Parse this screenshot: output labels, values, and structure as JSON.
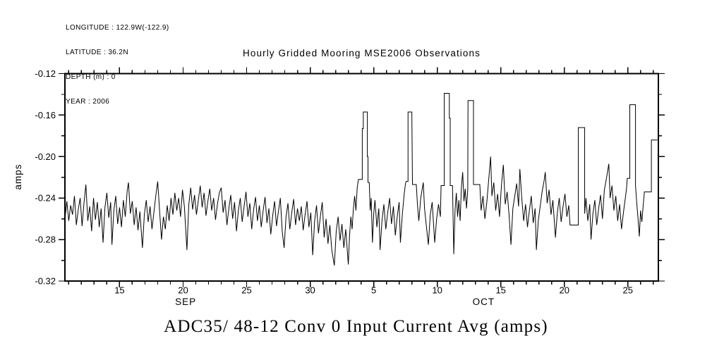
{
  "header_info": {
    "lines": [
      "LONGITUDE : 122.9W(-122.9)",
      "LATITUDE : 36.2N",
      "DEPTH (m) : 0",
      "YEAR : 2006"
    ]
  },
  "chart_data": {
    "type": "line",
    "title": "Hourly Gridded Mooring MSE2006 Observations",
    "caption": "ADC35/ 48-12 Conv 0 Input Current Avg (amps)",
    "ylabel": "amps",
    "series_name": "ADC35/ 48-12 Conv 0 Input Current Avg",
    "line_color": "#000000",
    "background": "#ffffff",
    "grid": false,
    "legend": "none",
    "x_axis_note": "x in day units: Sep 11-30 = 11-30, Oct d = 30+d",
    "xlim": [
      10.7,
      57.4
    ],
    "ylim": [
      -0.32,
      -0.12
    ],
    "x_major_ticks": [
      {
        "x": 15,
        "label": "15"
      },
      {
        "x": 20,
        "label": "20"
      },
      {
        "x": 25,
        "label": "25"
      },
      {
        "x": 30,
        "label": "30"
      },
      {
        "x": 35,
        "label": "5"
      },
      {
        "x": 40,
        "label": "10"
      },
      {
        "x": 45,
        "label": "15"
      },
      {
        "x": 50,
        "label": "20"
      },
      {
        "x": 55,
        "label": "25"
      }
    ],
    "x_minor_range": [
      11,
      57,
      1
    ],
    "y_major_ticks": [
      {
        "y": -0.12,
        "label": "-0.12"
      },
      {
        "y": -0.16,
        "label": "-0.16"
      },
      {
        "y": -0.2,
        "label": "-0.20"
      },
      {
        "y": -0.24,
        "label": "-0.24"
      },
      {
        "y": -0.28,
        "label": "-0.28"
      },
      {
        "y": -0.32,
        "label": "-0.32"
      }
    ],
    "y_minor_ticks": [
      -0.14,
      -0.18,
      -0.22,
      -0.26,
      -0.3
    ],
    "month_labels": [
      {
        "x": 20.2,
        "label": "SEP"
      },
      {
        "x": 43.65,
        "label": "OCT"
      }
    ],
    "points": [
      [
        10.72,
        -0.258
      ],
      [
        10.85,
        -0.243
      ],
      [
        11.0,
        -0.262
      ],
      [
        11.15,
        -0.247
      ],
      [
        11.3,
        -0.256
      ],
      [
        11.45,
        -0.238
      ],
      [
        11.6,
        -0.266
      ],
      [
        11.75,
        -0.251
      ],
      [
        11.9,
        -0.24
      ],
      [
        12.05,
        -0.267
      ],
      [
        12.2,
        -0.245
      ],
      [
        12.35,
        -0.227
      ],
      [
        12.5,
        -0.262
      ],
      [
        12.65,
        -0.248
      ],
      [
        12.8,
        -0.272
      ],
      [
        12.95,
        -0.24
      ],
      [
        13.1,
        -0.261
      ],
      [
        13.25,
        -0.244
      ],
      [
        13.4,
        -0.268
      ],
      [
        13.55,
        -0.25
      ],
      [
        13.7,
        -0.283
      ],
      [
        13.85,
        -0.249
      ],
      [
        14.0,
        -0.235
      ],
      [
        14.15,
        -0.259
      ],
      [
        14.3,
        -0.244
      ],
      [
        14.4,
        -0.285
      ],
      [
        14.55,
        -0.252
      ],
      [
        14.7,
        -0.238
      ],
      [
        14.85,
        -0.265
      ],
      [
        15.0,
        -0.249
      ],
      [
        15.15,
        -0.268
      ],
      [
        15.3,
        -0.242
      ],
      [
        15.45,
        -0.258
      ],
      [
        15.6,
        -0.233
      ],
      [
        15.7,
        -0.225
      ],
      [
        15.85,
        -0.255
      ],
      [
        16.0,
        -0.243
      ],
      [
        16.15,
        -0.266
      ],
      [
        16.3,
        -0.249
      ],
      [
        16.45,
        -0.271
      ],
      [
        16.6,
        -0.253
      ],
      [
        16.8,
        -0.288
      ],
      [
        16.95,
        -0.256
      ],
      [
        17.1,
        -0.242
      ],
      [
        17.25,
        -0.263
      ],
      [
        17.4,
        -0.248
      ],
      [
        17.55,
        -0.27
      ],
      [
        17.7,
        -0.254
      ],
      [
        17.85,
        -0.238
      ],
      [
        18.0,
        -0.224
      ],
      [
        18.15,
        -0.252
      ],
      [
        18.3,
        -0.28
      ],
      [
        18.45,
        -0.258
      ],
      [
        18.6,
        -0.27
      ],
      [
        18.75,
        -0.247
      ],
      [
        18.9,
        -0.262
      ],
      [
        19.05,
        -0.24
      ],
      [
        19.2,
        -0.256
      ],
      [
        19.35,
        -0.235
      ],
      [
        19.5,
        -0.252
      ],
      [
        19.65,
        -0.24
      ],
      [
        19.8,
        -0.258
      ],
      [
        19.95,
        -0.232
      ],
      [
        20.1,
        -0.248
      ],
      [
        20.3,
        -0.29
      ],
      [
        20.45,
        -0.246
      ],
      [
        20.6,
        -0.23
      ],
      [
        20.75,
        -0.251
      ],
      [
        20.9,
        -0.237
      ],
      [
        21.05,
        -0.256
      ],
      [
        21.2,
        -0.242
      ],
      [
        21.35,
        -0.228
      ],
      [
        21.5,
        -0.249
      ],
      [
        21.65,
        -0.235
      ],
      [
        21.8,
        -0.257
      ],
      [
        21.95,
        -0.243
      ],
      [
        22.1,
        -0.231
      ],
      [
        22.25,
        -0.252
      ],
      [
        22.4,
        -0.24
      ],
      [
        22.55,
        -0.261
      ],
      [
        22.7,
        -0.246
      ],
      [
        22.85,
        -0.235
      ],
      [
        23.0,
        -0.23
      ],
      [
        23.15,
        -0.254
      ],
      [
        23.3,
        -0.242
      ],
      [
        23.45,
        -0.266
      ],
      [
        23.6,
        -0.25
      ],
      [
        23.75,
        -0.237
      ],
      [
        23.9,
        -0.26
      ],
      [
        24.05,
        -0.244
      ],
      [
        24.2,
        -0.272
      ],
      [
        24.35,
        -0.252
      ],
      [
        24.5,
        -0.24
      ],
      [
        24.65,
        -0.263
      ],
      [
        24.8,
        -0.248
      ],
      [
        24.95,
        -0.234
      ],
      [
        25.1,
        -0.258
      ],
      [
        25.25,
        -0.245
      ],
      [
        25.4,
        -0.27
      ],
      [
        25.55,
        -0.251
      ],
      [
        25.7,
        -0.239
      ],
      [
        25.85,
        -0.262
      ],
      [
        26.0,
        -0.247
      ],
      [
        26.15,
        -0.268
      ],
      [
        26.3,
        -0.252
      ],
      [
        26.45,
        -0.239
      ],
      [
        26.6,
        -0.264
      ],
      [
        26.75,
        -0.25
      ],
      [
        26.9,
        -0.275
      ],
      [
        27.05,
        -0.257
      ],
      [
        27.2,
        -0.243
      ],
      [
        27.35,
        -0.267
      ],
      [
        27.5,
        -0.253
      ],
      [
        27.65,
        -0.24
      ],
      [
        27.8,
        -0.272
      ],
      [
        27.95,
        -0.288
      ],
      [
        28.1,
        -0.258
      ],
      [
        28.25,
        -0.245
      ],
      [
        28.4,
        -0.27
      ],
      [
        28.55,
        -0.254
      ],
      [
        28.7,
        -0.241
      ],
      [
        28.85,
        -0.266
      ],
      [
        29.0,
        -0.25
      ],
      [
        29.15,
        -0.262
      ],
      [
        29.3,
        -0.248
      ],
      [
        29.45,
        -0.271
      ],
      [
        29.6,
        -0.256
      ],
      [
        29.75,
        -0.243
      ],
      [
        29.9,
        -0.268
      ],
      [
        30.05,
        -0.254
      ],
      [
        30.2,
        -0.295
      ],
      [
        30.35,
        -0.262
      ],
      [
        30.5,
        -0.247
      ],
      [
        30.65,
        -0.274
      ],
      [
        30.8,
        -0.258
      ],
      [
        30.95,
        -0.244
      ],
      [
        31.1,
        -0.278
      ],
      [
        31.25,
        -0.26
      ],
      [
        31.4,
        -0.284
      ],
      [
        31.55,
        -0.266
      ],
      [
        31.7,
        -0.29
      ],
      [
        31.9,
        -0.305
      ],
      [
        32.05,
        -0.272
      ],
      [
        32.2,
        -0.258
      ],
      [
        32.35,
        -0.281
      ],
      [
        32.5,
        -0.265
      ],
      [
        32.65,
        -0.288
      ],
      [
        32.8,
        -0.27
      ],
      [
        33.0,
        -0.304
      ],
      [
        33.1,
        -0.276
      ],
      [
        33.2,
        -0.258
      ],
      [
        33.3,
        -0.27
      ],
      [
        33.4,
        -0.25
      ],
      [
        33.5,
        -0.238
      ],
      [
        33.6,
        -0.252
      ],
      [
        33.7,
        -0.23
      ],
      [
        33.8,
        -0.222
      ],
      [
        34.1,
        -0.222
      ],
      [
        34.1,
        -0.173
      ],
      [
        34.18,
        -0.173
      ],
      [
        34.18,
        -0.157
      ],
      [
        34.5,
        -0.157
      ],
      [
        34.5,
        -0.2
      ],
      [
        34.55,
        -0.2
      ],
      [
        34.55,
        -0.225
      ],
      [
        34.65,
        -0.225
      ],
      [
        34.72,
        -0.252
      ],
      [
        34.8,
        -0.24
      ],
      [
        34.9,
        -0.283
      ],
      [
        35.0,
        -0.255
      ],
      [
        35.1,
        -0.242
      ],
      [
        35.25,
        -0.268
      ],
      [
        35.4,
        -0.25
      ],
      [
        35.5,
        -0.29
      ],
      [
        35.65,
        -0.262
      ],
      [
        35.8,
        -0.246
      ],
      [
        35.95,
        -0.27
      ],
      [
        36.1,
        -0.254
      ],
      [
        36.25,
        -0.24
      ],
      [
        36.4,
        -0.265
      ],
      [
        36.55,
        -0.248
      ],
      [
        36.7,
        -0.276
      ],
      [
        36.85,
        -0.258
      ],
      [
        37.0,
        -0.244
      ],
      [
        37.1,
        -0.283
      ],
      [
        37.25,
        -0.256
      ],
      [
        37.4,
        -0.236
      ],
      [
        37.5,
        -0.226
      ],
      [
        37.55,
        -0.224
      ],
      [
        37.7,
        -0.224
      ],
      [
        37.7,
        -0.157
      ],
      [
        38.0,
        -0.157
      ],
      [
        38.05,
        -0.227
      ],
      [
        38.35,
        -0.227
      ],
      [
        38.45,
        -0.248
      ],
      [
        38.55,
        -0.262
      ],
      [
        38.7,
        -0.24
      ],
      [
        38.9,
        -0.225
      ],
      [
        39.0,
        -0.25
      ],
      [
        39.1,
        -0.262
      ],
      [
        39.3,
        -0.285
      ],
      [
        39.45,
        -0.256
      ],
      [
        39.6,
        -0.244
      ],
      [
        39.8,
        -0.283
      ],
      [
        39.95,
        -0.26
      ],
      [
        40.1,
        -0.246
      ],
      [
        40.25,
        -0.258
      ],
      [
        40.3,
        -0.228
      ],
      [
        40.55,
        -0.228
      ],
      [
        40.55,
        -0.139
      ],
      [
        40.95,
        -0.139
      ],
      [
        40.95,
        -0.163
      ],
      [
        41.02,
        -0.163
      ],
      [
        41.02,
        -0.228
      ],
      [
        41.2,
        -0.228
      ],
      [
        41.3,
        -0.294
      ],
      [
        41.4,
        -0.252
      ],
      [
        41.5,
        -0.235
      ],
      [
        41.6,
        -0.258
      ],
      [
        41.7,
        -0.242
      ],
      [
        41.8,
        -0.262
      ],
      [
        41.9,
        -0.23
      ],
      [
        42.0,
        -0.215
      ],
      [
        42.1,
        -0.243
      ],
      [
        42.2,
        -0.231
      ],
      [
        42.3,
        -0.25
      ],
      [
        42.4,
        -0.232
      ],
      [
        42.42,
        -0.146
      ],
      [
        42.85,
        -0.146
      ],
      [
        42.85,
        -0.227
      ],
      [
        43.35,
        -0.227
      ],
      [
        43.45,
        -0.252
      ],
      [
        43.6,
        -0.238
      ],
      [
        43.75,
        -0.26
      ],
      [
        43.9,
        -0.244
      ],
      [
        44.05,
        -0.222
      ],
      [
        44.2,
        -0.2
      ],
      [
        44.3,
        -0.238
      ],
      [
        44.45,
        -0.225
      ],
      [
        44.6,
        -0.252
      ],
      [
        44.75,
        -0.236
      ],
      [
        44.9,
        -0.258
      ],
      [
        45.05,
        -0.228
      ],
      [
        45.2,
        -0.208
      ],
      [
        45.35,
        -0.246
      ],
      [
        45.5,
        -0.234
      ],
      [
        45.65,
        -0.256
      ],
      [
        45.8,
        -0.285
      ],
      [
        45.95,
        -0.25
      ],
      [
        46.1,
        -0.238
      ],
      [
        46.25,
        -0.226
      ],
      [
        46.4,
        -0.248
      ],
      [
        46.5,
        -0.212
      ],
      [
        46.65,
        -0.24
      ],
      [
        46.8,
        -0.262
      ],
      [
        46.95,
        -0.246
      ],
      [
        47.1,
        -0.268
      ],
      [
        47.25,
        -0.252
      ],
      [
        47.4,
        -0.238
      ],
      [
        47.55,
        -0.264
      ],
      [
        47.7,
        -0.25
      ],
      [
        47.8,
        -0.29
      ],
      [
        47.95,
        -0.262
      ],
      [
        48.1,
        -0.248
      ],
      [
        48.25,
        -0.234
      ],
      [
        48.4,
        -0.224
      ],
      [
        48.5,
        -0.215
      ],
      [
        48.65,
        -0.245
      ],
      [
        48.8,
        -0.232
      ],
      [
        48.95,
        -0.256
      ],
      [
        49.1,
        -0.242
      ],
      [
        49.3,
        -0.278
      ],
      [
        49.45,
        -0.254
      ],
      [
        49.6,
        -0.24
      ],
      [
        49.75,
        -0.263
      ],
      [
        49.9,
        -0.248
      ],
      [
        50.05,
        -0.236
      ],
      [
        50.2,
        -0.258
      ],
      [
        50.35,
        -0.247
      ],
      [
        50.45,
        -0.266
      ],
      [
        51.1,
        -0.266
      ],
      [
        51.1,
        -0.172
      ],
      [
        51.6,
        -0.172
      ],
      [
        51.6,
        -0.255
      ],
      [
        51.7,
        -0.24
      ],
      [
        51.85,
        -0.262
      ],
      [
        52.0,
        -0.246
      ],
      [
        52.1,
        -0.28
      ],
      [
        52.25,
        -0.255
      ],
      [
        52.4,
        -0.242
      ],
      [
        52.55,
        -0.266
      ],
      [
        52.7,
        -0.25
      ],
      [
        52.85,
        -0.237
      ],
      [
        53.0,
        -0.26
      ],
      [
        53.15,
        -0.232
      ],
      [
        53.3,
        -0.222
      ],
      [
        53.5,
        -0.207
      ],
      [
        53.6,
        -0.24
      ],
      [
        53.75,
        -0.228
      ],
      [
        53.9,
        -0.252
      ],
      [
        54.05,
        -0.238
      ],
      [
        54.2,
        -0.262
      ],
      [
        54.35,
        -0.246
      ],
      [
        54.5,
        -0.27
      ],
      [
        54.65,
        -0.254
      ],
      [
        54.8,
        -0.24
      ],
      [
        54.9,
        -0.23
      ],
      [
        54.95,
        -0.221
      ],
      [
        55.15,
        -0.221
      ],
      [
        55.15,
        -0.15
      ],
      [
        55.6,
        -0.15
      ],
      [
        55.6,
        -0.228
      ],
      [
        55.7,
        -0.245
      ],
      [
        55.8,
        -0.26
      ],
      [
        55.9,
        -0.277
      ],
      [
        56.0,
        -0.252
      ],
      [
        56.1,
        -0.263
      ],
      [
        56.2,
        -0.248
      ],
      [
        56.3,
        -0.234
      ],
      [
        56.85,
        -0.234
      ],
      [
        56.85,
        -0.184
      ],
      [
        57.32,
        -0.184
      ]
    ]
  }
}
